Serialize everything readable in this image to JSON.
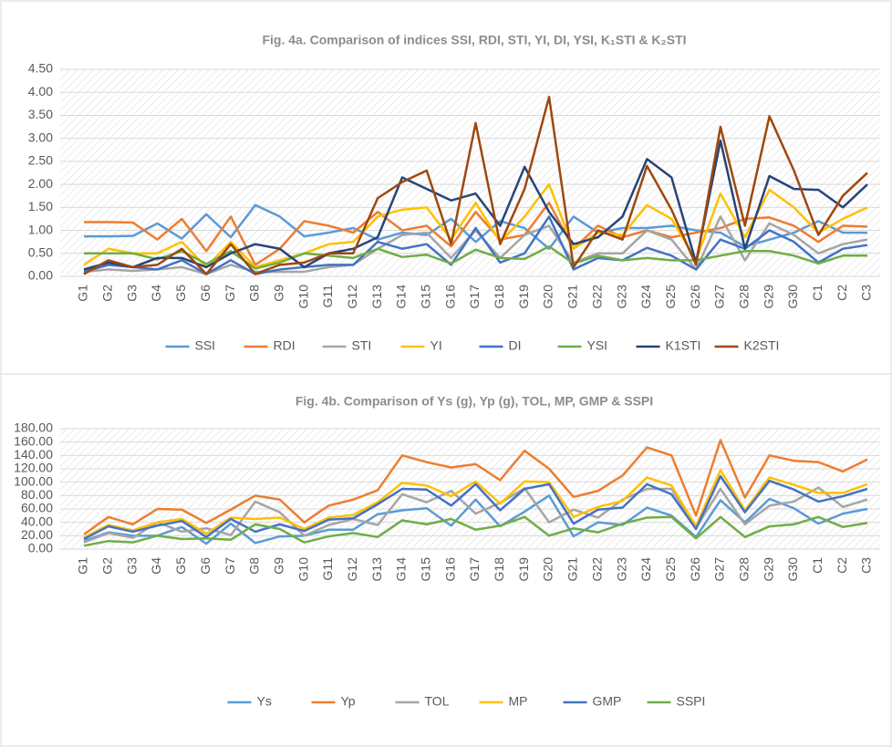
{
  "chart_data": [
    {
      "type": "line",
      "title": "Fig. 4a. Comparison of indices SSI, RDI, STI, YI, DI, YSI, K₁STI & K₂STI",
      "categories": [
        "G1",
        "G2",
        "G3",
        "G4",
        "G5",
        "G6",
        "G7",
        "G8",
        "G9",
        "G10",
        "G11",
        "G12",
        "G13",
        "G14",
        "G15",
        "G16",
        "G17",
        "G18",
        "G19",
        "G20",
        "G21",
        "G22",
        "G23",
        "G24",
        "G25",
        "G26",
        "G27",
        "G28",
        "G29",
        "G30",
        "C1",
        "C2",
        "C3"
      ],
      "ylim": [
        0,
        4.5
      ],
      "yticks": [
        {
          "value": 0,
          "label": "0.00"
        },
        {
          "value": 0.5,
          "label": "0.50"
        },
        {
          "value": 1,
          "label": "1.00"
        },
        {
          "value": 1.5,
          "label": "1.50"
        },
        {
          "value": 2,
          "label": "2.00"
        },
        {
          "value": 2.5,
          "label": "2.50"
        },
        {
          "value": 3,
          "label": "3.00"
        },
        {
          "value": 3.5,
          "label": "3.50"
        },
        {
          "value": 4,
          "label": "4.00"
        },
        {
          "value": 4.5,
          "label": "4.50"
        }
      ],
      "grid": true,
      "legend": "bottom",
      "series": [
        {
          "name": "SSI",
          "color": "#5b9bd5",
          "values": [
            0.87,
            0.87,
            0.88,
            1.15,
            0.82,
            1.35,
            0.85,
            1.55,
            1.3,
            0.87,
            0.95,
            1.05,
            0.8,
            0.95,
            0.9,
            1.25,
            0.75,
            1.2,
            1.05,
            0.6,
            1.3,
            0.95,
            1.05,
            1.05,
            1.1,
            1.0,
            0.95,
            0.65,
            0.8,
            0.95,
            1.2,
            0.95,
            0.95
          ]
        },
        {
          "name": "RDI",
          "color": "#ed7d31",
          "values": [
            1.18,
            1.18,
            1.17,
            0.8,
            1.25,
            0.55,
            1.3,
            0.25,
            0.6,
            1.2,
            1.1,
            0.95,
            1.4,
            1.0,
            1.1,
            0.65,
            1.4,
            0.8,
            0.9,
            1.6,
            0.6,
            1.1,
            0.85,
            1.0,
            0.85,
            0.95,
            1.05,
            1.25,
            1.28,
            1.1,
            0.75,
            1.1,
            1.08
          ]
        },
        {
          "name": "STI",
          "color": "#a5a5a5",
          "values": [
            0.1,
            0.15,
            0.12,
            0.15,
            0.2,
            0.05,
            0.25,
            0.1,
            0.1,
            0.1,
            0.2,
            0.25,
            0.6,
            0.9,
            0.95,
            0.4,
            1.0,
            0.4,
            0.9,
            1.1,
            0.3,
            0.5,
            0.5,
            1.0,
            0.8,
            0.15,
            1.3,
            0.35,
            1.15,
            0.9,
            0.5,
            0.7,
            0.8
          ]
        },
        {
          "name": "YI",
          "color": "#ffc000",
          "values": [
            0.25,
            0.6,
            0.5,
            0.5,
            0.75,
            0.2,
            0.75,
            0.2,
            0.35,
            0.5,
            0.7,
            0.75,
            1.3,
            1.45,
            1.5,
            0.8,
            1.6,
            0.75,
            1.3,
            2.0,
            0.6,
            0.95,
            0.9,
            1.55,
            1.25,
            0.35,
            1.8,
            0.85,
            1.88,
            1.5,
            0.95,
            1.25,
            1.5
          ]
        },
        {
          "name": "DI",
          "color": "#4472c4",
          "values": [
            0.1,
            0.25,
            0.2,
            0.15,
            0.35,
            0.05,
            0.35,
            0.05,
            0.15,
            0.2,
            0.25,
            0.25,
            0.75,
            0.6,
            0.7,
            0.25,
            1.05,
            0.3,
            0.5,
            1.3,
            0.15,
            0.4,
            0.35,
            0.62,
            0.45,
            0.15,
            0.8,
            0.6,
            1.0,
            0.75,
            0.3,
            0.6,
            0.68
          ]
        },
        {
          "name": "YSI",
          "color": "#70ad47",
          "values": [
            0.5,
            0.5,
            0.5,
            0.37,
            0.55,
            0.27,
            0.55,
            0.17,
            0.3,
            0.5,
            0.45,
            0.4,
            0.6,
            0.42,
            0.47,
            0.28,
            0.58,
            0.4,
            0.38,
            0.65,
            0.28,
            0.45,
            0.35,
            0.4,
            0.35,
            0.35,
            0.45,
            0.55,
            0.55,
            0.45,
            0.28,
            0.45,
            0.45
          ]
        },
        {
          "name": "K1STI",
          "color": "#264478",
          "values": [
            0.15,
            0.3,
            0.2,
            0.4,
            0.4,
            0.2,
            0.5,
            0.7,
            0.6,
            0.2,
            0.5,
            0.6,
            0.85,
            2.15,
            1.9,
            1.65,
            1.8,
            1.1,
            2.38,
            1.4,
            0.7,
            0.85,
            1.3,
            2.55,
            2.15,
            0.3,
            2.95,
            0.6,
            2.18,
            1.9,
            1.88,
            1.5,
            2.0
          ]
        },
        {
          "name": "K2STI",
          "color": "#9e480e",
          "values": [
            0.05,
            0.35,
            0.2,
            0.25,
            0.6,
            0.05,
            0.7,
            0.05,
            0.25,
            0.3,
            0.5,
            0.5,
            1.7,
            2.05,
            2.3,
            0.7,
            3.33,
            0.7,
            1.9,
            3.9,
            0.2,
            1.0,
            0.8,
            2.4,
            1.45,
            0.25,
            3.25,
            1.1,
            3.48,
            2.3,
            0.9,
            1.75,
            2.25
          ]
        }
      ]
    },
    {
      "type": "line",
      "title": "Fig. 4b. Comparison of Ys (g), Yp (g), TOL, MP, GMP & SSPI",
      "categories": [
        "G1",
        "G2",
        "G3",
        "G4",
        "G5",
        "G6",
        "G7",
        "G8",
        "G9",
        "G10",
        "G11",
        "G12",
        "G13",
        "G14",
        "G15",
        "G16",
        "G17",
        "G18",
        "G19",
        "G20",
        "G21",
        "G22",
        "G23",
        "G24",
        "G25",
        "G26",
        "G27",
        "G28",
        "G29",
        "G30",
        "C1",
        "C2",
        "C3"
      ],
      "ylim": [
        0,
        180
      ],
      "yticks": [
        {
          "value": 0,
          "label": "0.00"
        },
        {
          "value": 20,
          "label": "20.00"
        },
        {
          "value": 40,
          "label": "40.00"
        },
        {
          "value": 60,
          "label": "60.00"
        },
        {
          "value": 80,
          "label": "80.00"
        },
        {
          "value": 100,
          "label": "100.00"
        },
        {
          "value": 120,
          "label": "120.00"
        },
        {
          "value": 140,
          "label": "140.00"
        },
        {
          "value": 160,
          "label": "160.00"
        },
        {
          "value": 180,
          "label": "180.00"
        }
      ],
      "grid": true,
      "legend": "bottom",
      "series": [
        {
          "name": "Ys",
          "color": "#5b9bd5",
          "values": [
            12,
            25,
            20,
            20,
            33,
            8,
            38,
            9,
            19,
            20,
            29,
            29,
            52,
            58,
            61,
            35,
            74,
            34,
            56,
            80,
            19,
            40,
            36,
            62,
            50,
            18,
            73,
            40,
            75,
            61,
            38,
            53,
            60
          ]
        },
        {
          "name": "Yp",
          "color": "#ed7d31",
          "values": [
            22,
            48,
            37,
            60,
            59,
            39,
            59,
            80,
            74,
            40,
            65,
            74,
            88,
            140,
            130,
            122,
            127,
            103,
            147,
            120,
            78,
            87,
            110,
            152,
            140,
            50,
            163,
            77,
            140,
            132,
            130,
            116,
            134
          ]
        },
        {
          "name": "TOL",
          "color": "#a5a5a5",
          "values": [
            10,
            24,
            17,
            40,
            26,
            31,
            21,
            71,
            55,
            20,
            36,
            45,
            36,
            82,
            70,
            87,
            53,
            69,
            91,
            40,
            59,
            47,
            74,
            90,
            90,
            32,
            90,
            37,
            65,
            71,
            92,
            63,
            74
          ]
        },
        {
          "name": "MP",
          "color": "#ffc000",
          "values": [
            17,
            36,
            28,
            40,
            45,
            23,
            47,
            45,
            47,
            30,
            47,
            51,
            70,
            99,
            95,
            79,
            101,
            68,
            101,
            100,
            48,
            63,
            72,
            107,
            95,
            34,
            118,
            58,
            107,
            96,
            84,
            84,
            97
          ]
        },
        {
          "name": "GMP",
          "color": "#4472c4",
          "values": [
            15,
            34,
            26,
            35,
            42,
            18,
            45,
            26,
            37,
            27,
            44,
            46,
            67,
            90,
            89,
            65,
            97,
            58,
            90,
            97,
            38,
            59,
            62,
            97,
            82,
            30,
            109,
            55,
            102,
            89,
            71,
            79,
            90
          ]
        },
        {
          "name": "SSPI",
          "color": "#70ad47",
          "values": [
            5,
            12,
            10,
            20,
            15,
            16,
            14,
            37,
            30,
            10,
            19,
            24,
            18,
            43,
            37,
            45,
            29,
            35,
            48,
            20,
            31,
            25,
            38,
            47,
            48,
            16,
            48,
            18,
            34,
            37,
            48,
            33,
            39
          ]
        }
      ]
    }
  ]
}
